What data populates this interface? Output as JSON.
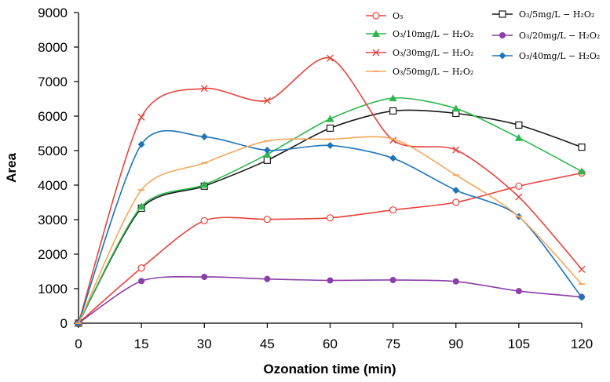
{
  "chart_data": {
    "type": "line",
    "title": "",
    "xlabel": "Ozonation time (min)",
    "ylabel": "Area",
    "x": [
      0,
      15,
      30,
      45,
      60,
      75,
      90,
      105,
      120
    ],
    "xlim": [
      0,
      120
    ],
    "ylim": [
      0,
      9000
    ],
    "x_ticks": [
      "0",
      "15",
      "30",
      "45",
      "60",
      "75",
      "90",
      "105",
      "120"
    ],
    "y_ticks": [
      "0",
      "1000",
      "2000",
      "3000",
      "4000",
      "5000",
      "6000",
      "7000",
      "8000",
      "9000"
    ],
    "grid": false,
    "legend_position": "top-right",
    "series": [
      {
        "name": "O3",
        "legend": "O₃",
        "color": "#e8423a",
        "marker": "open-circle",
        "values": [
          0,
          1600,
          2970,
          3010,
          3050,
          3280,
          3500,
          3970,
          4350
        ]
      },
      {
        "name": "O3/5mg/L-H2O2",
        "legend": "O₃/5mg/L − H₂O₂",
        "color": "#1a1a1a",
        "marker": "open-square",
        "values": [
          0,
          3330,
          3970,
          4720,
          5650,
          6150,
          6080,
          5740,
          5100
        ]
      },
      {
        "name": "O3/10mg/L-H2O2",
        "legend": "O₃/10mg/L − H₂O₂",
        "color": "#2db84d",
        "marker": "triangle",
        "values": [
          0,
          3380,
          4010,
          4890,
          5920,
          6520,
          6220,
          5370,
          4400
        ]
      },
      {
        "name": "O3/20mg/L-H2O2",
        "legend": "O₃/20mg/L − H₂O₂",
        "color": "#8a3ea8",
        "marker": "dot",
        "values": [
          0,
          1220,
          1340,
          1280,
          1240,
          1250,
          1210,
          930,
          760
        ]
      },
      {
        "name": "O3/30mg/L-H2O2",
        "legend": "O₃/30mg/L − H₂O₂",
        "color": "#e8423a",
        "marker": "x",
        "values": [
          0,
          5970,
          6800,
          6450,
          7680,
          5300,
          5020,
          3660,
          1560
        ]
      },
      {
        "name": "O3/40mg/L-H2O2",
        "legend": "O₃/40mg/L − H₂O₂",
        "color": "#1f74b8",
        "marker": "diamond",
        "values": [
          0,
          5180,
          5400,
          5010,
          5150,
          4780,
          3850,
          3090,
          750
        ]
      },
      {
        "name": "O3/50mg/L-H2O2",
        "legend": "O₃/50mg/L − H₂O₂",
        "color": "#f5a65b",
        "marker": "dash",
        "values": [
          0,
          3860,
          4640,
          5280,
          5330,
          5340,
          4290,
          3090,
          1130
        ]
      }
    ]
  }
}
